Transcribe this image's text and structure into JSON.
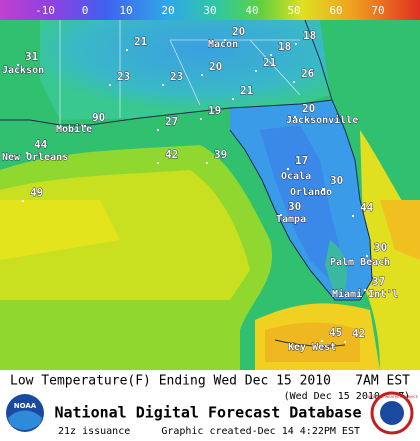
{
  "scale": [
    -10,
    0,
    10,
    20,
    30,
    40,
    50,
    60,
    70
  ],
  "cities": [
    "Jackson",
    "Macon",
    "Mobile",
    "New Orleans",
    "Jacksonville",
    "Ocala",
    "Orlando",
    "Tampa",
    "Palm Beach",
    "Miami Int'l",
    "Key West"
  ],
  "temperatures": [
    20,
    18,
    18,
    31,
    21,
    23,
    23,
    20,
    21,
    26,
    21,
    90,
    27,
    19,
    20,
    44,
    42,
    39,
    17,
    30,
    49,
    30,
    44,
    30,
    37,
    45,
    42
  ],
  "footer": {
    "title": "Low Temperature(F) Ending Wed Dec 15 2010",
    "valid_time": "7AM EST",
    "utc_time": "(Wed Dec 15 2010 12Z)",
    "database": "National Digital Forecast Database",
    "issuance": "21z issuance",
    "created": "Graphic created-Dec 14  4:22PM EST",
    "noaa": "NOAA",
    "nws": "NATIONAL WEATHER SERVICE"
  }
}
